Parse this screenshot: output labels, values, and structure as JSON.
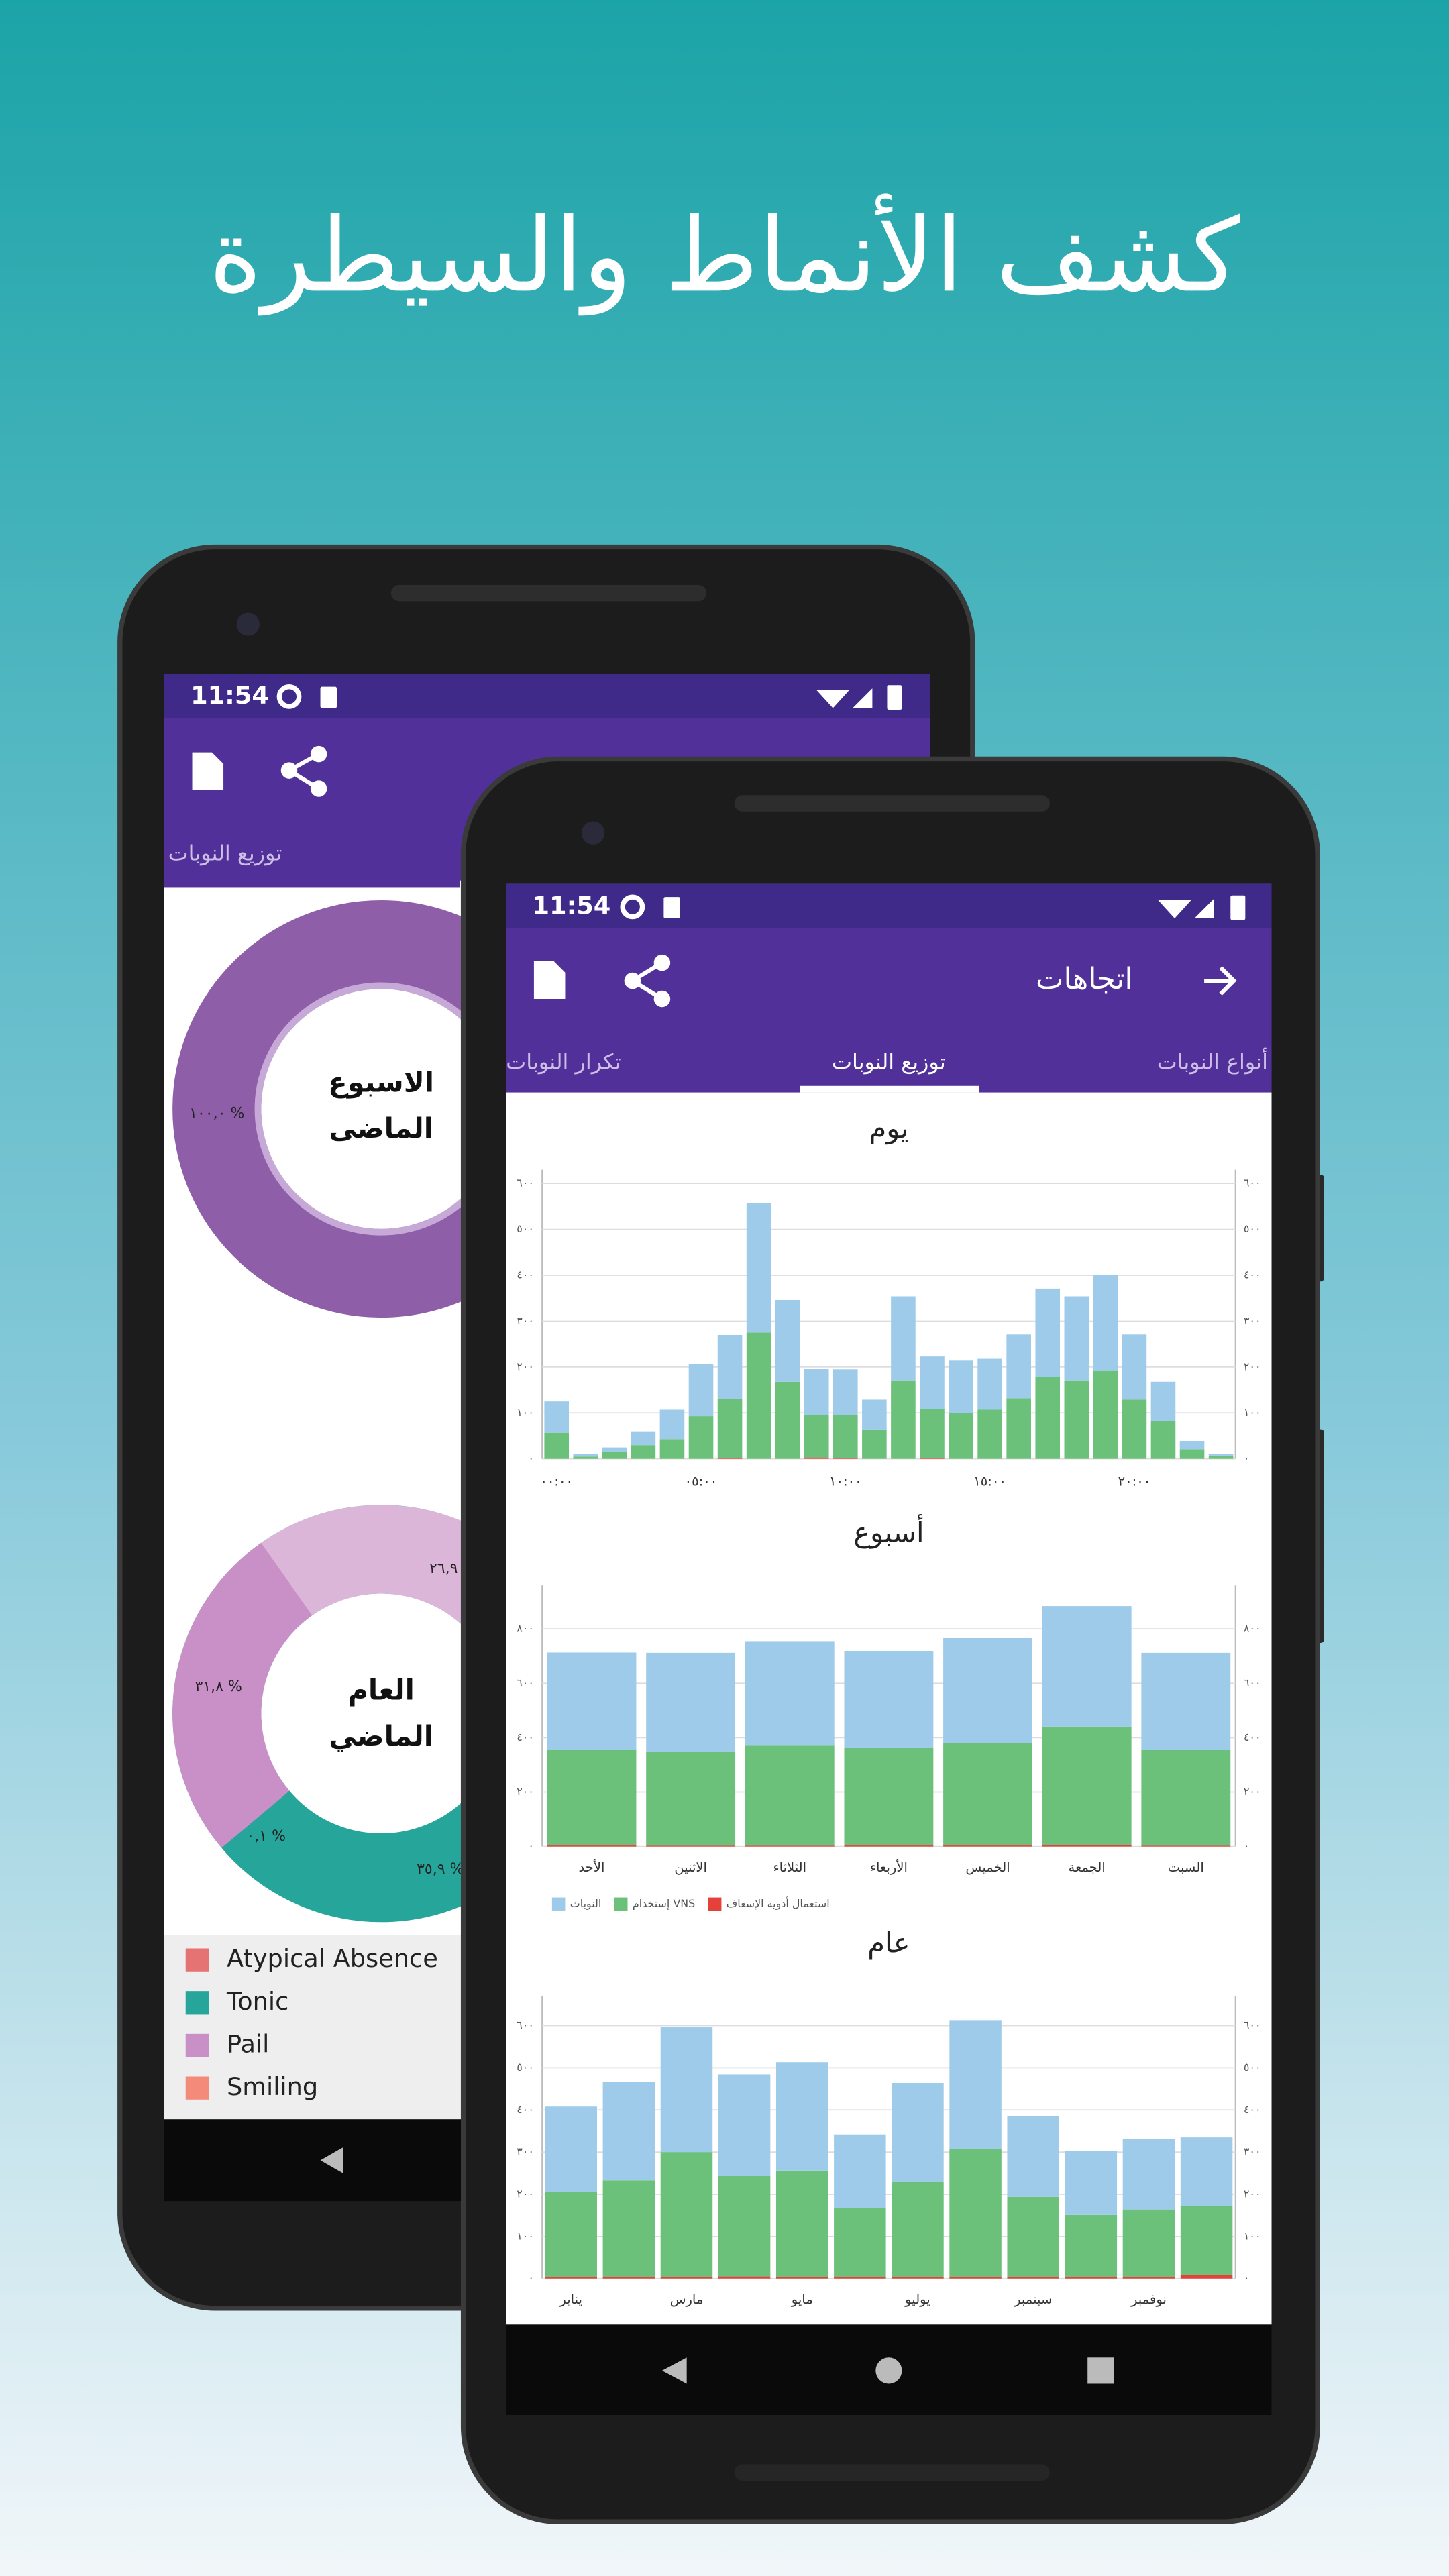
{
  "headline": "كشف الأنماط والسيطرة",
  "back_screen": {
    "status_time": "11:54",
    "tab": "توزيع النوبات",
    "donut_week": {
      "center_line_1": "الاسبوع",
      "center_line_2": "الماضى",
      "label": "١٠٠,٠ %"
    },
    "donut_year": {
      "center_line_1": "العام",
      "center_line_2": "الماضي",
      "labels": [
        "٢٦,٩",
        "٣١,٨ %",
        "٠,١ %",
        "٣٥,٩ %"
      ]
    },
    "legend": [
      {
        "name": "Atypical Absence",
        "color": "#e57373"
      },
      {
        "name": "Tonic",
        "color": "#26a69a"
      },
      {
        "name": "Pail",
        "color": "#c990c8"
      },
      {
        "name": "Smiling",
        "color": "#f48a7a"
      }
    ]
  },
  "front_screen": {
    "status_time": "11:54",
    "title": "اتجاهات",
    "tabs": [
      "تكرار النوبات",
      "توزيع النوبات",
      "أنواع النوبات"
    ]
  },
  "chart_data": [
    {
      "type": "bar",
      "title": "يوم",
      "categories": [
        "٠٠:٠٠",
        null,
        null,
        null,
        null,
        "٠٥:٠٠",
        null,
        null,
        null,
        null,
        "١٠:٠٠",
        null,
        null,
        null,
        null,
        "١٥:٠٠",
        null,
        null,
        null,
        null,
        "٢٠:٠٠",
        null,
        null,
        null
      ],
      "series": [
        {
          "name": "استعمال أدوية الإسعاف",
          "color": "#e5403a",
          "values": [
            0,
            0,
            0,
            0,
            0,
            0,
            2,
            0,
            0,
            3,
            2,
            0,
            0,
            2,
            0,
            0,
            0,
            0,
            0,
            0,
            0,
            0,
            0,
            0
          ]
        },
        {
          "name": "إستخدام VNS",
          "color": "#6cc17a",
          "values": [
            57,
            5,
            15,
            30,
            43,
            93,
            129,
            275,
            168,
            93,
            93,
            64,
            171,
            107,
            100,
            107,
            132,
            179,
            171,
            193,
            129,
            82,
            21,
            7
          ]
        },
        {
          "name": "النوبات",
          "color": "#9fcbeb",
          "values": [
            68,
            5,
            10,
            30,
            64,
            114,
            139,
            282,
            178,
            100,
            100,
            65,
            183,
            114,
            114,
            111,
            139,
            192,
            183,
            207,
            142,
            86,
            18,
            4
          ]
        }
      ],
      "ylim": [
        0,
        630
      ],
      "yticks": [
        {
          "value": 0,
          "label": "٠"
        },
        {
          "value": 100,
          "label": "١٠٠"
        },
        {
          "value": 200,
          "label": "٢٠٠"
        },
        {
          "value": 300,
          "label": "٣٠٠"
        },
        {
          "value": 400,
          "label": "٤٠٠"
        },
        {
          "value": 500,
          "label": "٥٠٠"
        },
        {
          "value": 600,
          "label": "٦٠٠"
        }
      ],
      "grid": true,
      "legend": false
    },
    {
      "type": "bar",
      "title": "أسبوع",
      "categories": [
        "الأحد",
        "الاثنين",
        "الثلاثاء",
        "الأربعاء",
        "الخميس",
        "الجمعة",
        "السبت"
      ],
      "series": [
        {
          "name": "استعمال أدوية الإسعاف",
          "color": "#e5403a",
          "values": [
            4,
            3,
            3,
            4,
            4,
            5,
            3
          ]
        },
        {
          "name": "إستخدام VNS",
          "color": "#6cc17a",
          "values": [
            352,
            345,
            370,
            358,
            376,
            436,
            352
          ]
        },
        {
          "name": "النوبات",
          "color": "#9fcbeb",
          "values": [
            357,
            364,
            382,
            357,
            388,
            443,
            357
          ]
        }
      ],
      "ylim": [
        0,
        960
      ],
      "yticks": [
        {
          "value": 0,
          "label": "٠"
        },
        {
          "value": 200,
          "label": "٢٠٠"
        },
        {
          "value": 400,
          "label": "٤٠٠"
        },
        {
          "value": 600,
          "label": "٦٠٠"
        },
        {
          "value": 800,
          "label": "٨٠٠"
        }
      ],
      "grid": true,
      "legend": true
    },
    {
      "type": "bar",
      "title": "عام",
      "categories": [
        "يناير",
        null,
        "مارس",
        null,
        "مايو",
        null,
        "يوليو",
        null,
        "سبتمبر",
        null,
        "نوفمبر",
        null
      ],
      "series": [
        {
          "name": "استعمال أدوية الإسعاف",
          "color": "#e5403a",
          "values": [
            3,
            3,
            4,
            5,
            3,
            3,
            4,
            3,
            3,
            3,
            4,
            8
          ]
        },
        {
          "name": "إستخدام VNS",
          "color": "#6cc17a",
          "values": [
            203,
            230,
            296,
            238,
            253,
            164,
            226,
            304,
            191,
            148,
            160,
            164
          ]
        },
        {
          "name": "النوبات",
          "color": "#9fcbeb",
          "values": [
            202,
            234,
            296,
            241,
            257,
            175,
            234,
            306,
            191,
            152,
            167,
            163
          ]
        }
      ],
      "ylim": [
        0,
        670
      ],
      "yticks": [
        {
          "value": 0,
          "label": "٠"
        },
        {
          "value": 100,
          "label": "١٠٠"
        },
        {
          "value": 200,
          "label": "٢٠٠"
        },
        {
          "value": 300,
          "label": "٣٠٠"
        },
        {
          "value": 400,
          "label": "٤٠٠"
        },
        {
          "value": 500,
          "label": "٥٠٠"
        },
        {
          "value": 600,
          "label": "٦٠٠"
        }
      ],
      "grid": true,
      "legend": false
    }
  ]
}
